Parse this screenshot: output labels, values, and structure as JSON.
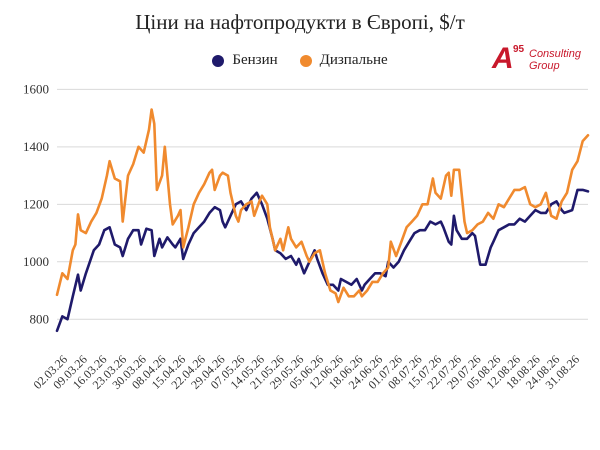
{
  "header": {
    "title": "Ціни на нафтопродукти в Європі, $/т"
  },
  "logo": {
    "mark": "A",
    "sup": "95",
    "line1": "Consulting",
    "line2": "Group"
  },
  "colors": {
    "benzin": "#1f1a6b",
    "diesel": "#f08a2e",
    "grid": "#d9d9d9",
    "brand": "#c8182b"
  },
  "chart_data": {
    "type": "line",
    "title": "Ціни на нафтопродукти в Європі, $/т",
    "xlabel": "",
    "ylabel": "",
    "ylim": [
      700,
      1650
    ],
    "yticks": [
      800,
      1000,
      1200,
      1400,
      1600
    ],
    "grid": true,
    "legend_position": "top",
    "x_tick_labels": [
      "02.03.26",
      "09.03.26",
      "16.03.26",
      "23.03.26",
      "30.03.26",
      "08.04.26",
      "15.04.26",
      "22.04.26",
      "29.04.26",
      "07.05.26",
      "14.05.26",
      "21.05.26",
      "29.05.26",
      "05.06.26",
      "12.06.26",
      "18.06.26",
      "24.06.26",
      "01.07.26",
      "08.07.26",
      "15.07.26",
      "22.07.26",
      "29.07.26",
      "05.08.26",
      "12.08.26",
      "18.08.26",
      "24.08.26",
      "31.08.26"
    ],
    "x_count": 131,
    "series": [
      {
        "name": "Бензин",
        "color": "#1f1a6b",
        "keypoints": [
          [
            0,
            760
          ],
          [
            2,
            810
          ],
          [
            4,
            800
          ],
          [
            6,
            880
          ],
          [
            8,
            955
          ],
          [
            9,
            900
          ],
          [
            11,
            960
          ],
          [
            14,
            1040
          ],
          [
            16,
            1060
          ],
          [
            18,
            1110
          ],
          [
            20,
            1120
          ],
          [
            22,
            1060
          ],
          [
            24,
            1050
          ],
          [
            25,
            1020
          ],
          [
            27,
            1080
          ],
          [
            29,
            1110
          ],
          [
            31,
            1110
          ],
          [
            32,
            1060
          ],
          [
            34,
            1115
          ],
          [
            36,
            1110
          ],
          [
            37,
            1020
          ],
          [
            39,
            1080
          ],
          [
            40,
            1050
          ],
          [
            42,
            1085
          ],
          [
            44,
            1060
          ],
          [
            45,
            1050
          ],
          [
            47,
            1080
          ],
          [
            48,
            1010
          ],
          [
            50,
            1060
          ],
          [
            52,
            1100
          ],
          [
            54,
            1120
          ],
          [
            56,
            1140
          ],
          [
            58,
            1170
          ],
          [
            60,
            1190
          ],
          [
            62,
            1180
          ],
          [
            63,
            1140
          ],
          [
            64,
            1120
          ],
          [
            66,
            1160
          ],
          [
            68,
            1200
          ],
          [
            70,
            1210
          ],
          [
            72,
            1180
          ],
          [
            74,
            1220
          ],
          [
            76,
            1240
          ],
          [
            78,
            1200
          ],
          [
            80,
            1150
          ],
          [
            82,
            1080
          ],
          [
            83,
            1040
          ],
          [
            85,
            1030
          ],
          [
            87,
            1010
          ],
          [
            89,
            1020
          ],
          [
            91,
            990
          ],
          [
            92,
            1010
          ],
          [
            94,
            960
          ],
          [
            96,
            1000
          ],
          [
            98,
            1040
          ],
          [
            99,
            1010
          ],
          [
            101,
            960
          ],
          [
            103,
            920
          ],
          [
            105,
            920
          ],
          [
            107,
            900
          ],
          [
            108,
            940
          ],
          [
            110,
            930
          ],
          [
            112,
            920
          ],
          [
            114,
            940
          ],
          [
            116,
            900
          ],
          [
            117,
            920
          ],
          [
            119,
            940
          ],
          [
            121,
            960
          ],
          [
            123,
            960
          ],
          [
            125,
            950
          ],
          [
            126,
            1000
          ],
          [
            128,
            980
          ],
          [
            130,
            1000
          ],
          [
            132,
            1040
          ],
          [
            134,
            1070
          ],
          [
            136,
            1100
          ],
          [
            138,
            1110
          ],
          [
            140,
            1110
          ],
          [
            142,
            1140
          ],
          [
            144,
            1130
          ],
          [
            146,
            1140
          ],
          [
            147,
            1120
          ],
          [
            149,
            1070
          ],
          [
            150,
            1060
          ],
          [
            151,
            1160
          ],
          [
            152,
            1110
          ],
          [
            154,
            1080
          ],
          [
            156,
            1080
          ],
          [
            158,
            1100
          ],
          [
            159,
            1090
          ],
          [
            161,
            990
          ],
          [
            163,
            990
          ],
          [
            165,
            1050
          ],
          [
            166,
            1070
          ],
          [
            168,
            1110
          ],
          [
            170,
            1120
          ],
          [
            172,
            1130
          ],
          [
            174,
            1130
          ],
          [
            176,
            1150
          ],
          [
            178,
            1140
          ],
          [
            180,
            1160
          ],
          [
            182,
            1180
          ],
          [
            184,
            1170
          ],
          [
            186,
            1170
          ],
          [
            188,
            1200
          ],
          [
            190,
            1210
          ],
          [
            192,
            1180
          ],
          [
            193,
            1170
          ],
          [
            196,
            1180
          ],
          [
            198,
            1250
          ],
          [
            200,
            1250
          ],
          [
            202,
            1245
          ]
        ]
      },
      {
        "name": "Дизпальне",
        "color": "#f08a2e",
        "keypoints": [
          [
            0,
            885
          ],
          [
            2,
            960
          ],
          [
            4,
            940
          ],
          [
            6,
            1040
          ],
          [
            7,
            1060
          ],
          [
            8,
            1165
          ],
          [
            9,
            1110
          ],
          [
            11,
            1100
          ],
          [
            13,
            1140
          ],
          [
            15,
            1170
          ],
          [
            17,
            1220
          ],
          [
            19,
            1300
          ],
          [
            20,
            1350
          ],
          [
            22,
            1290
          ],
          [
            24,
            1280
          ],
          [
            25,
            1140
          ],
          [
            27,
            1300
          ],
          [
            29,
            1340
          ],
          [
            31,
            1400
          ],
          [
            33,
            1380
          ],
          [
            35,
            1460
          ],
          [
            36,
            1530
          ],
          [
            37,
            1480
          ],
          [
            38,
            1250
          ],
          [
            40,
            1300
          ],
          [
            41,
            1400
          ],
          [
            43,
            1200
          ],
          [
            44,
            1130
          ],
          [
            46,
            1160
          ],
          [
            47,
            1180
          ],
          [
            48,
            1050
          ],
          [
            50,
            1120
          ],
          [
            52,
            1200
          ],
          [
            54,
            1240
          ],
          [
            56,
            1270
          ],
          [
            58,
            1310
          ],
          [
            59,
            1320
          ],
          [
            60,
            1250
          ],
          [
            62,
            1300
          ],
          [
            63,
            1310
          ],
          [
            65,
            1300
          ],
          [
            66,
            1240
          ],
          [
            68,
            1160
          ],
          [
            69,
            1140
          ],
          [
            70,
            1180
          ],
          [
            72,
            1200
          ],
          [
            74,
            1210
          ],
          [
            75,
            1160
          ],
          [
            77,
            1210
          ],
          [
            78,
            1230
          ],
          [
            80,
            1200
          ],
          [
            81,
            1120
          ],
          [
            83,
            1040
          ],
          [
            85,
            1080
          ],
          [
            86,
            1040
          ],
          [
            88,
            1120
          ],
          [
            89,
            1080
          ],
          [
            91,
            1050
          ],
          [
            93,
            1070
          ],
          [
            95,
            1020
          ],
          [
            96,
            1000
          ],
          [
            98,
            1030
          ],
          [
            100,
            1040
          ],
          [
            102,
            960
          ],
          [
            104,
            900
          ],
          [
            106,
            890
          ],
          [
            107,
            860
          ],
          [
            109,
            910
          ],
          [
            111,
            880
          ],
          [
            113,
            880
          ],
          [
            115,
            900
          ],
          [
            116,
            880
          ],
          [
            118,
            900
          ],
          [
            120,
            930
          ],
          [
            122,
            930
          ],
          [
            124,
            960
          ],
          [
            126,
            980
          ],
          [
            127,
            1070
          ],
          [
            129,
            1020
          ],
          [
            131,
            1070
          ],
          [
            133,
            1120
          ],
          [
            135,
            1140
          ],
          [
            137,
            1160
          ],
          [
            139,
            1200
          ],
          [
            141,
            1200
          ],
          [
            143,
            1290
          ],
          [
            144,
            1240
          ],
          [
            146,
            1220
          ],
          [
            148,
            1300
          ],
          [
            149,
            1310
          ],
          [
            150,
            1230
          ],
          [
            151,
            1320
          ],
          [
            153,
            1320
          ],
          [
            155,
            1140
          ],
          [
            156,
            1100
          ],
          [
            158,
            1110
          ],
          [
            160,
            1130
          ],
          [
            162,
            1140
          ],
          [
            164,
            1170
          ],
          [
            166,
            1150
          ],
          [
            168,
            1200
          ],
          [
            170,
            1190
          ],
          [
            172,
            1220
          ],
          [
            174,
            1250
          ],
          [
            176,
            1250
          ],
          [
            178,
            1260
          ],
          [
            180,
            1200
          ],
          [
            182,
            1190
          ],
          [
            184,
            1200
          ],
          [
            186,
            1240
          ],
          [
            188,
            1160
          ],
          [
            190,
            1150
          ],
          [
            192,
            1210
          ],
          [
            194,
            1240
          ],
          [
            196,
            1320
          ],
          [
            198,
            1350
          ],
          [
            200,
            1420
          ],
          [
            202,
            1440
          ]
        ]
      }
    ]
  }
}
